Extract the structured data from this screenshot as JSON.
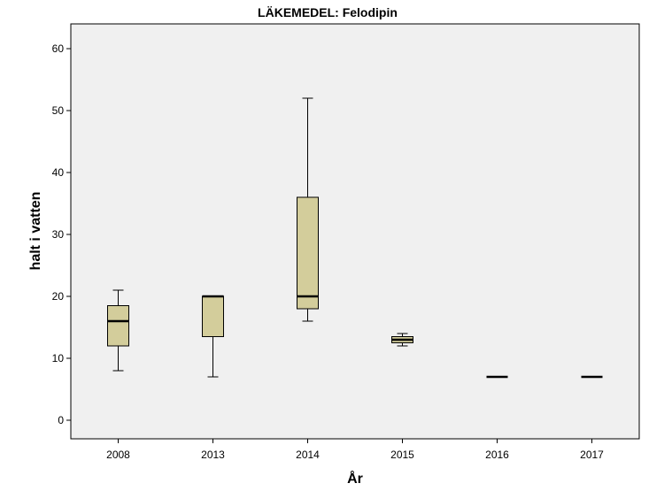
{
  "chart_data": {
    "type": "boxplot",
    "title": "LÄKEMEDEL: Felodipin",
    "xlabel": "År",
    "ylabel": "halt i vatten",
    "ylim": [
      -3,
      64
    ],
    "yticks": [
      "0",
      "10",
      "20",
      "30",
      "40",
      "50",
      "60"
    ],
    "grid": false,
    "colors": {
      "plot_bg": "#f0f0f0",
      "box_fill": "#d3cd9b",
      "stroke": "#000000"
    },
    "categories": [
      "2008",
      "2013",
      "2014",
      "2015",
      "2016",
      "2017"
    ],
    "boxes": [
      {
        "category": "2008",
        "min": 8,
        "q1": 12,
        "median": 16,
        "q3": 18.5,
        "max": 21
      },
      {
        "category": "2013",
        "min": 7,
        "q1": 13.5,
        "median": 20,
        "q3": 20,
        "max": 20
      },
      {
        "category": "2014",
        "min": 16,
        "q1": 18,
        "median": 20,
        "q3": 36,
        "max": 52
      },
      {
        "category": "2015",
        "min": 12,
        "q1": 12.5,
        "median": 13,
        "q3": 13.5,
        "max": 14
      },
      {
        "category": "2016",
        "min": 7,
        "q1": 7,
        "median": 7,
        "q3": 7,
        "max": 7
      },
      {
        "category": "2017",
        "min": 7,
        "q1": 7,
        "median": 7,
        "q3": 7,
        "max": 7
      }
    ]
  }
}
